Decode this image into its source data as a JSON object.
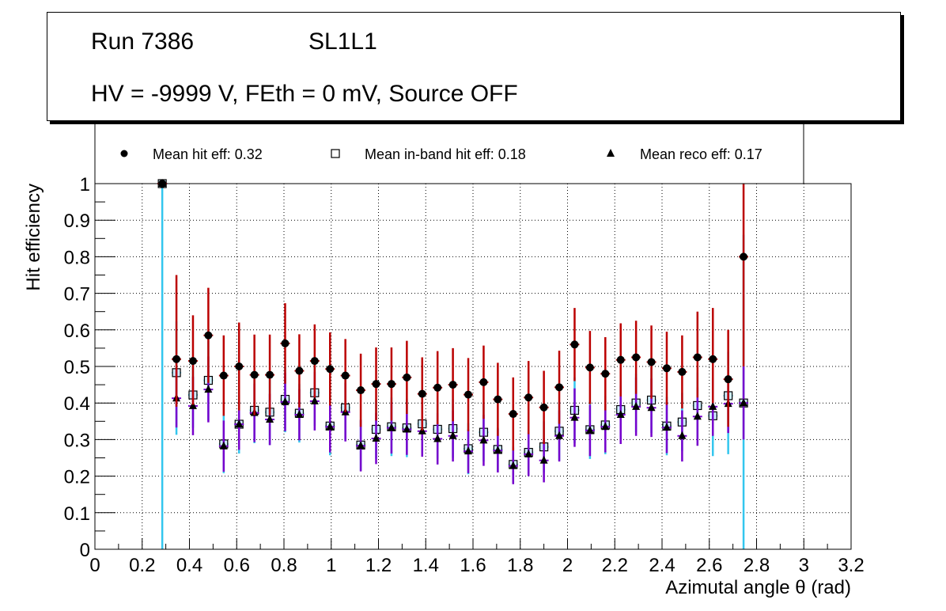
{
  "header": {
    "run": "Run 7386",
    "layer": "SL1L1",
    "conditions": "HV = -9999 V, FEth = 0 mV, Source OFF"
  },
  "colors": {
    "hit_err": "#bb0000",
    "inband_err": "#33c6ee",
    "reco_err": "#7700cc",
    "marker": "#000000",
    "inband_fill": "#cfeeff",
    "grid": "#000000"
  },
  "chart_data": {
    "type": "scatter",
    "title": "",
    "xlabel": "Azimutal angle θ (rad)",
    "ylabel": "Hit efficiency",
    "xlim": [
      0,
      3.2
    ],
    "ylim": [
      0,
      1
    ],
    "xticks": [
      "0",
      "0.2",
      "0.4",
      "0.6",
      "0.8",
      "1",
      "1.2",
      "1.4",
      "1.6",
      "1.8",
      "2",
      "2.2",
      "2.4",
      "2.6",
      "2.8",
      "3",
      "3.2"
    ],
    "yticks": [
      "0",
      "0.1",
      "0.2",
      "0.3",
      "0.4",
      "0.5",
      "0.6",
      "0.7",
      "0.8",
      "0.9",
      "1"
    ],
    "grid": true,
    "bin_half_width": 0.02,
    "legend": [
      "Mean hit  eff: 0.32",
      "Mean in-band hit eff: 0.18",
      "Mean reco eff: 0.17"
    ],
    "x": [
      0.285,
      0.345,
      0.415,
      0.48,
      0.545,
      0.61,
      0.675,
      0.74,
      0.805,
      0.865,
      0.93,
      0.995,
      1.06,
      1.125,
      1.19,
      1.255,
      1.32,
      1.385,
      1.45,
      1.515,
      1.58,
      1.645,
      1.705,
      1.77,
      1.835,
      1.9,
      1.965,
      2.03,
      2.095,
      2.16,
      2.225,
      2.29,
      2.355,
      2.42,
      2.485,
      2.55,
      2.615,
      2.68,
      2.745
    ],
    "series": [
      {
        "name": "Mean hit  eff: 0.32",
        "marker": "circle",
        "values": [
          1.0,
          0.52,
          0.515,
          0.585,
          0.475,
          0.5,
          0.477,
          0.477,
          0.563,
          0.488,
          0.515,
          0.493,
          0.475,
          0.435,
          0.452,
          0.452,
          0.47,
          0.425,
          0.442,
          0.45,
          0.423,
          0.457,
          0.41,
          0.37,
          0.415,
          0.388,
          0.443,
          0.56,
          0.497,
          0.48,
          0.518,
          0.525,
          0.512,
          0.495,
          0.485,
          0.525,
          0.52,
          0.465,
          0.8
        ],
        "err_low": [
          0.0,
          0.13,
          0.12,
          0.13,
          0.11,
          0.12,
          0.11,
          0.11,
          0.11,
          0.1,
          0.1,
          0.1,
          0.1,
          0.1,
          0.1,
          0.1,
          0.1,
          0.1,
          0.1,
          0.1,
          0.1,
          0.1,
          0.1,
          0.1,
          0.1,
          0.1,
          0.1,
          0.1,
          0.1,
          0.1,
          0.1,
          0.1,
          0.1,
          0.1,
          0.1,
          0.11,
          0.12,
          0.13,
          0.3
        ],
        "err_high": [
          0.0,
          0.23,
          0.125,
          0.13,
          0.11,
          0.12,
          0.11,
          0.11,
          0.11,
          0.1,
          0.1,
          0.1,
          0.1,
          0.1,
          0.1,
          0.1,
          0.1,
          0.1,
          0.1,
          0.1,
          0.1,
          0.1,
          0.1,
          0.1,
          0.1,
          0.1,
          0.1,
          0.1,
          0.1,
          0.1,
          0.1,
          0.1,
          0.1,
          0.1,
          0.1,
          0.125,
          0.14,
          0.135,
          0.2
        ]
      },
      {
        "name": "Mean in-band hit eff: 0.18",
        "marker": "open-square",
        "values": [
          1.0,
          0.483,
          0.422,
          0.462,
          0.288,
          0.342,
          0.38,
          0.375,
          0.41,
          0.372,
          0.428,
          0.337,
          0.387,
          0.285,
          0.328,
          0.335,
          0.332,
          0.343,
          0.328,
          0.33,
          0.275,
          0.32,
          0.273,
          0.232,
          0.265,
          0.28,
          0.323,
          0.38,
          0.327,
          0.34,
          0.382,
          0.4,
          0.408,
          0.337,
          0.348,
          0.393,
          0.365,
          0.42,
          0.4
        ],
        "err_low": [
          1.0,
          0.17,
          0.09,
          0.11,
          0.08,
          0.08,
          0.09,
          0.09,
          0.09,
          0.08,
          0.09,
          0.08,
          0.09,
          0.07,
          0.08,
          0.08,
          0.08,
          0.08,
          0.08,
          0.08,
          0.07,
          0.08,
          0.06,
          0.05,
          0.06,
          0.07,
          0.08,
          0.09,
          0.08,
          0.08,
          0.08,
          0.08,
          0.09,
          0.08,
          0.08,
          0.09,
          0.11,
          0.16,
          0.4
        ],
        "err_high": [
          0.0,
          0.14,
          0.1,
          0.11,
          0.08,
          0.08,
          0.09,
          0.09,
          0.09,
          0.08,
          0.09,
          0.08,
          0.09,
          0.07,
          0.08,
          0.08,
          0.08,
          0.08,
          0.08,
          0.08,
          0.07,
          0.08,
          0.06,
          0.05,
          0.06,
          0.07,
          0.08,
          0.09,
          0.08,
          0.08,
          0.08,
          0.08,
          0.09,
          0.08,
          0.08,
          0.09,
          0.1,
          0.12,
          0.46
        ]
      },
      {
        "name": "Mean reco eff: 0.17",
        "marker": "triangle",
        "values": [
          1.0,
          0.413,
          0.392,
          0.437,
          0.282,
          0.342,
          0.373,
          0.355,
          0.403,
          0.368,
          0.405,
          0.335,
          0.375,
          0.283,
          0.303,
          0.332,
          0.328,
          0.323,
          0.302,
          0.31,
          0.268,
          0.298,
          0.27,
          0.228,
          0.26,
          0.243,
          0.31,
          0.36,
          0.325,
          0.335,
          0.368,
          0.39,
          0.387,
          0.333,
          0.31,
          0.363,
          0.39,
          0.398,
          0.4
        ],
        "err_low": [
          0.0,
          0.08,
          0.08,
          0.09,
          0.07,
          0.07,
          0.08,
          0.07,
          0.08,
          0.07,
          0.08,
          0.07,
          0.08,
          0.07,
          0.07,
          0.07,
          0.07,
          0.07,
          0.07,
          0.07,
          0.06,
          0.07,
          0.06,
          0.05,
          0.06,
          0.06,
          0.07,
          0.08,
          0.07,
          0.07,
          0.08,
          0.08,
          0.08,
          0.07,
          0.07,
          0.08,
          0.08,
          0.08,
          0.1
        ],
        "err_high": [
          0.0,
          0.08,
          0.08,
          0.09,
          0.07,
          0.07,
          0.08,
          0.07,
          0.08,
          0.07,
          0.08,
          0.07,
          0.08,
          0.07,
          0.07,
          0.07,
          0.07,
          0.07,
          0.07,
          0.07,
          0.06,
          0.07,
          0.06,
          0.05,
          0.06,
          0.06,
          0.07,
          0.08,
          0.07,
          0.07,
          0.08,
          0.08,
          0.08,
          0.07,
          0.07,
          0.08,
          0.08,
          0.08,
          0.1
        ]
      }
    ]
  }
}
